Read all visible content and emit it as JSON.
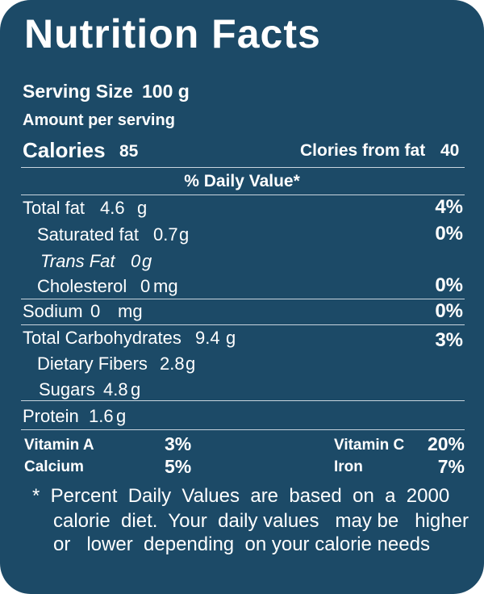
{
  "title": "Nutrition Facts",
  "serving": {
    "serving_size_label": "Serving Size",
    "serving_size_value": "100 g",
    "amount_per_serving": "Amount per serving"
  },
  "calories": {
    "label": "Calories",
    "value": "85",
    "from_fat_label": "Clories from fat",
    "from_fat_value": "40"
  },
  "daily_value_header": "% Daily Value*",
  "nutrients": {
    "total_fat": {
      "label": "Total fat",
      "amount": "4.6",
      "unit": "g",
      "dv": "4%"
    },
    "saturated_fat": {
      "label": "Saturated fat",
      "amount": "0.7",
      "unit": "g",
      "dv": "0%"
    },
    "trans_fat": {
      "label": "Trans Fat",
      "amount": "0",
      "unit": "g"
    },
    "cholesterol": {
      "label": "Cholesterol",
      "amount": "0",
      "unit": "mg",
      "dv": "0%"
    },
    "sodium": {
      "label": "Sodium",
      "amount": "0",
      "unit": "mg",
      "dv": "0%"
    },
    "total_carbohydrates": {
      "label": "Total Carbohydrates",
      "amount": "9.4",
      "unit": "g",
      "dv": "3%"
    },
    "dietary_fibers": {
      "label": "Dietary Fibers",
      "amount": "2.8",
      "unit": "g"
    },
    "sugars": {
      "label": "Sugars",
      "amount": "4.8",
      "unit": "g"
    },
    "protein": {
      "label": "Protein",
      "amount": "1.6",
      "unit": "g"
    }
  },
  "vitamins": {
    "vitamin_a": {
      "label": "Vitamin A",
      "dv": "3%"
    },
    "vitamin_c": {
      "label": "Vitamin C",
      "dv": "20%"
    },
    "calcium": {
      "label": "Calcium",
      "dv": "5%"
    },
    "iron": {
      "label": "Iron",
      "dv": "7%"
    }
  },
  "footnote": {
    "line1": "*  Percent  Daily  Values  are  based  on  a  2000",
    "line2": "calorie  diet.  Your  daily values   may be   higher",
    "line3": "or   lower  depending  on your calorie needs"
  },
  "colors": {
    "background": "#1c4a67",
    "text": "#ffffff",
    "divider": "#c9d5de"
  }
}
